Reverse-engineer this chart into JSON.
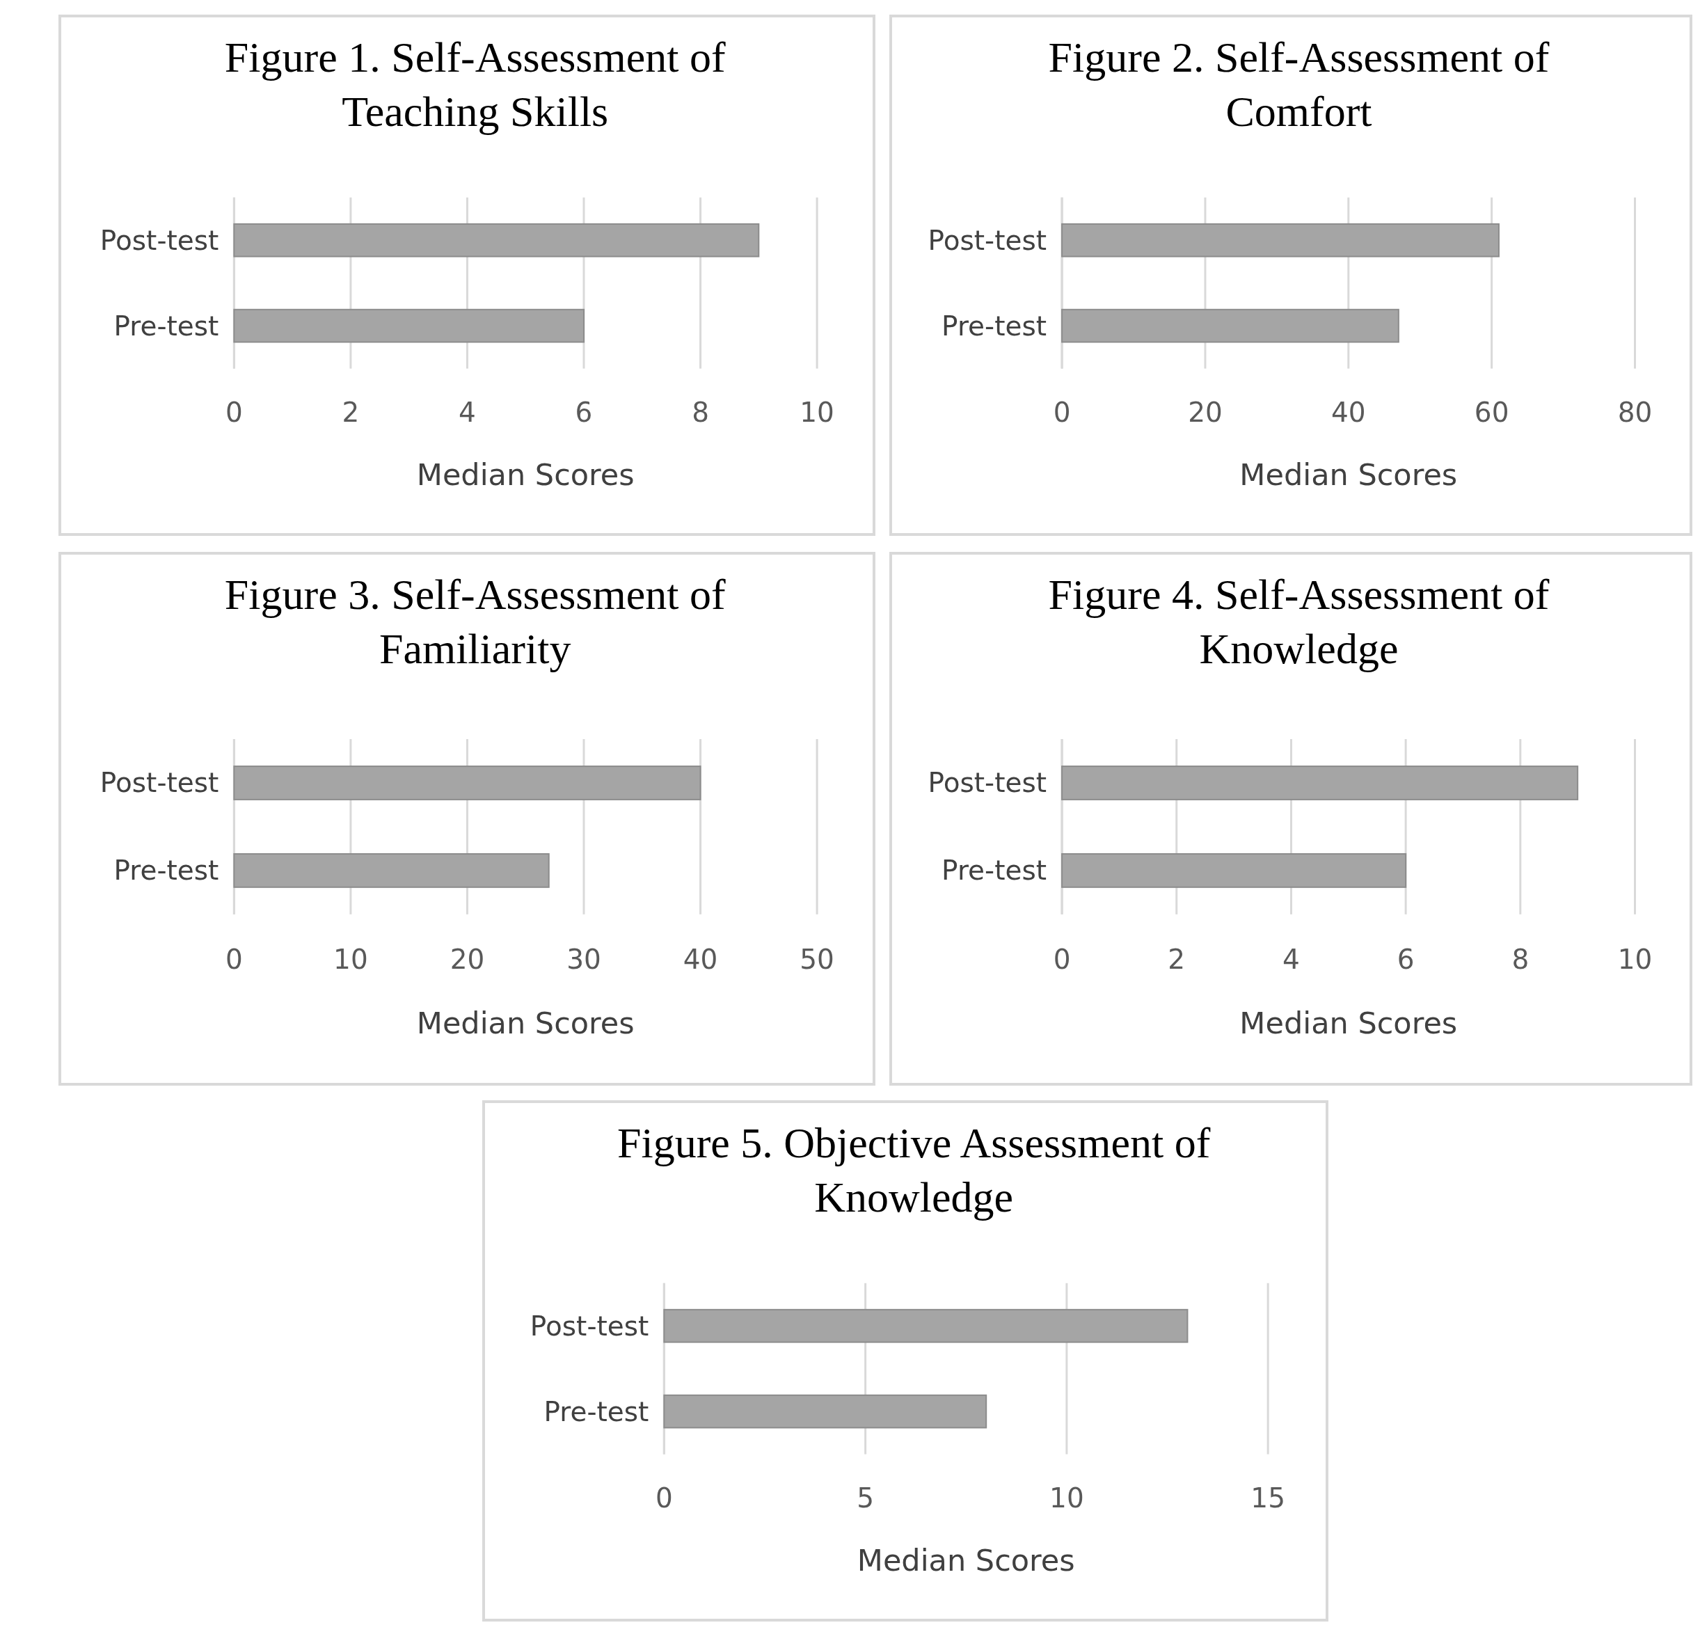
{
  "chart_data": [
    {
      "type": "bar",
      "orientation": "horizontal",
      "title": "Figure 1. Self-Assessment of Teaching Skills",
      "xlabel": "Median Scores",
      "categories": [
        "Post-test",
        "Pre-test"
      ],
      "values": [
        9,
        6
      ],
      "color": "#a5a5a5",
      "xlim": [
        0,
        10
      ],
      "xticks": [
        0,
        2,
        4,
        6,
        8,
        10
      ],
      "grid": "x"
    },
    {
      "type": "bar",
      "orientation": "horizontal",
      "title": "Figure 2. Self-Assessment of Comfort",
      "xlabel": "Median Scores",
      "categories": [
        "Post-test",
        "Pre-test"
      ],
      "values": [
        61,
        47
      ],
      "color": "#a5a5a5",
      "xlim": [
        0,
        80
      ],
      "xticks": [
        0,
        20,
        40,
        60,
        80
      ],
      "grid": "x"
    },
    {
      "type": "bar",
      "orientation": "horizontal",
      "title": "Figure 3. Self-Assessment of Familiarity",
      "xlabel": "Median Scores",
      "categories": [
        "Post-test",
        "Pre-test"
      ],
      "values": [
        40,
        27
      ],
      "color": "#a5a5a5",
      "xlim": [
        0,
        50
      ],
      "xticks": [
        0,
        10,
        20,
        30,
        40,
        50
      ],
      "grid": "x"
    },
    {
      "type": "bar",
      "orientation": "horizontal",
      "title": "Figure 4. Self-Assessment of Knowledge",
      "xlabel": "Median Scores",
      "categories": [
        "Post-test",
        "Pre-test"
      ],
      "values": [
        9,
        6
      ],
      "color": "#a5a5a5",
      "xlim": [
        0,
        10
      ],
      "xticks": [
        0,
        2,
        4,
        6,
        8,
        10
      ],
      "grid": "x"
    },
    {
      "type": "bar",
      "orientation": "horizontal",
      "title": "Figure 5. Objective Assessment of Knowledge",
      "xlabel": "Median Scores",
      "categories": [
        "Post-test",
        "Pre-test"
      ],
      "values": [
        13,
        8
      ],
      "color": "#a5a5a5",
      "xlim": [
        0,
        15
      ],
      "xticks": [
        0,
        5,
        10,
        15
      ],
      "grid": "x"
    }
  ]
}
